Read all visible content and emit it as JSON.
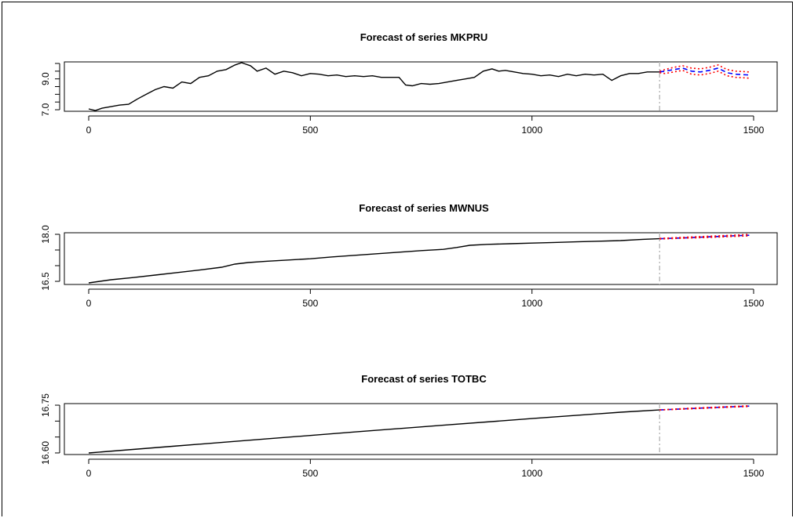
{
  "chart_data": [
    {
      "type": "line",
      "title": "Forecast of series MKPRU",
      "xlabel": "",
      "ylabel": "",
      "xlim": [
        0,
        1500
      ],
      "ylim": [
        6.9,
        10.1
      ],
      "x_ticks": [
        0,
        500,
        1000,
        1500
      ],
      "x_tick_labels": [
        "0",
        "500",
        "1000",
        "1500"
      ],
      "y_ticks": [
        7.0,
        7.5,
        8.0,
        8.5,
        9.0,
        9.5,
        10.0
      ],
      "y_tick_labels": [
        "7.0",
        "",
        "",
        "",
        "9.0",
        "",
        ""
      ],
      "forecast_start": 1288,
      "series": [
        {
          "role": "observed",
          "color": "#000000",
          "x": [
            0,
            15,
            30,
            50,
            70,
            90,
            110,
            130,
            150,
            170,
            190,
            210,
            230,
            250,
            270,
            290,
            310,
            330,
            345,
            355,
            365,
            380,
            400,
            420,
            440,
            460,
            480,
            500,
            520,
            540,
            560,
            580,
            600,
            620,
            640,
            660,
            680,
            700,
            715,
            730,
            750,
            770,
            790,
            810,
            830,
            850,
            870,
            890,
            910,
            925,
            940,
            960,
            980,
            1000,
            1020,
            1040,
            1060,
            1080,
            1100,
            1120,
            1140,
            1160,
            1170,
            1180,
            1200,
            1220,
            1240,
            1260,
            1288
          ],
          "y": [
            7.05,
            6.95,
            7.1,
            7.2,
            7.3,
            7.35,
            7.7,
            8.0,
            8.3,
            8.5,
            8.4,
            8.8,
            8.7,
            9.1,
            9.2,
            9.5,
            9.6,
            9.9,
            10.05,
            9.95,
            9.85,
            9.5,
            9.7,
            9.3,
            9.5,
            9.4,
            9.2,
            9.35,
            9.3,
            9.2,
            9.25,
            9.15,
            9.2,
            9.15,
            9.2,
            9.1,
            9.1,
            9.1,
            8.6,
            8.55,
            8.7,
            8.65,
            8.7,
            8.8,
            8.9,
            9.0,
            9.1,
            9.5,
            9.65,
            9.5,
            9.55,
            9.45,
            9.35,
            9.3,
            9.2,
            9.25,
            9.15,
            9.3,
            9.2,
            9.3,
            9.25,
            9.3,
            9.1,
            8.9,
            9.2,
            9.35,
            9.35,
            9.45,
            9.45
          ]
        },
        {
          "role": "forecast",
          "color": "#0000ff",
          "x": [
            1288,
            1300,
            1320,
            1340,
            1360,
            1380,
            1400,
            1420,
            1440,
            1460,
            1490
          ],
          "y": [
            9.45,
            9.5,
            9.6,
            9.7,
            9.5,
            9.45,
            9.55,
            9.7,
            9.4,
            9.3,
            9.25
          ]
        },
        {
          "role": "upper",
          "color": "#ff0000",
          "x": [
            1288,
            1300,
            1320,
            1340,
            1360,
            1380,
            1400,
            1420,
            1440,
            1460,
            1490
          ],
          "y": [
            9.5,
            9.6,
            9.75,
            9.85,
            9.7,
            9.65,
            9.75,
            9.9,
            9.6,
            9.5,
            9.45
          ]
        },
        {
          "role": "lower",
          "color": "#ff0000",
          "x": [
            1288,
            1300,
            1320,
            1340,
            1360,
            1380,
            1400,
            1420,
            1440,
            1460,
            1490
          ],
          "y": [
            9.4,
            9.35,
            9.45,
            9.55,
            9.3,
            9.25,
            9.35,
            9.5,
            9.2,
            9.1,
            9.05
          ]
        }
      ]
    },
    {
      "type": "line",
      "title": "Forecast of series MWNUS",
      "xlabel": "",
      "ylabel": "",
      "xlim": [
        0,
        1500
      ],
      "ylim": [
        16.4,
        18.05
      ],
      "x_ticks": [
        0,
        500,
        1000,
        1500
      ],
      "x_tick_labels": [
        "0",
        "500",
        "1000",
        "1500"
      ],
      "y_ticks": [
        16.5,
        17.0,
        17.5,
        18.0
      ],
      "y_tick_labels": [
        "16.5",
        "",
        "",
        "18.0"
      ],
      "forecast_start": 1288,
      "series": [
        {
          "role": "observed",
          "color": "#000000",
          "x": [
            0,
            50,
            100,
            150,
            200,
            250,
            300,
            330,
            360,
            400,
            450,
            500,
            550,
            600,
            650,
            700,
            750,
            800,
            830,
            860,
            900,
            950,
            1000,
            1050,
            1100,
            1150,
            1200,
            1250,
            1288
          ],
          "y": [
            16.45,
            16.55,
            16.62,
            16.7,
            16.78,
            16.86,
            16.95,
            17.05,
            17.1,
            17.14,
            17.18,
            17.22,
            17.28,
            17.33,
            17.38,
            17.43,
            17.48,
            17.52,
            17.58,
            17.65,
            17.68,
            17.7,
            17.72,
            17.74,
            17.76,
            17.78,
            17.8,
            17.84,
            17.86
          ]
        },
        {
          "role": "forecast",
          "color": "#0000ff",
          "x": [
            1288,
            1350,
            1400,
            1450,
            1490
          ],
          "y": [
            17.86,
            17.89,
            17.92,
            17.95,
            17.97
          ]
        },
        {
          "role": "upper",
          "color": "#ff0000",
          "x": [
            1288,
            1350,
            1400,
            1450,
            1490
          ],
          "y": [
            17.87,
            17.91,
            17.94,
            17.97,
            18.0
          ]
        },
        {
          "role": "lower",
          "color": "#ff0000",
          "x": [
            1288,
            1350,
            1400,
            1450,
            1490
          ],
          "y": [
            17.85,
            17.88,
            17.9,
            17.93,
            17.95
          ]
        }
      ]
    },
    {
      "type": "line",
      "title": "Forecast of series TOTBC",
      "xlabel": "",
      "ylabel": "",
      "xlim": [
        0,
        1500
      ],
      "ylim": [
        16.595,
        16.755
      ],
      "x_ticks": [
        0,
        500,
        1000,
        1500
      ],
      "x_tick_labels": [
        "0",
        "500",
        "1000",
        "1500"
      ],
      "y_ticks": [
        16.6,
        16.65,
        16.7,
        16.75
      ],
      "y_tick_labels": [
        "16.60",
        "",
        "",
        "16.75"
      ],
      "forecast_start": 1288,
      "series": [
        {
          "role": "observed",
          "color": "#000000",
          "x": [
            0,
            200,
            400,
            600,
            800,
            1000,
            1200,
            1288
          ],
          "y": [
            16.6,
            16.622,
            16.644,
            16.666,
            16.687,
            16.708,
            16.728,
            16.735
          ]
        },
        {
          "role": "forecast",
          "color": "#0000ff",
          "x": [
            1288,
            1350,
            1400,
            1450,
            1490
          ],
          "y": [
            16.735,
            16.739,
            16.742,
            16.745,
            16.747
          ]
        },
        {
          "role": "upper",
          "color": "#ff0000",
          "x": [
            1288,
            1350,
            1400,
            1450,
            1490
          ],
          "y": [
            16.735,
            16.74,
            16.743,
            16.746,
            16.748
          ]
        },
        {
          "role": "lower",
          "color": "#ff0000",
          "x": [
            1288,
            1350,
            1400,
            1450,
            1490
          ],
          "y": [
            16.735,
            16.738,
            16.741,
            16.744,
            16.746
          ]
        }
      ]
    }
  ],
  "colors": {
    "observed": "#000000",
    "forecast": "#0000ff",
    "interval": "#ff0000",
    "forecast_divider": "#bbbbbb"
  }
}
